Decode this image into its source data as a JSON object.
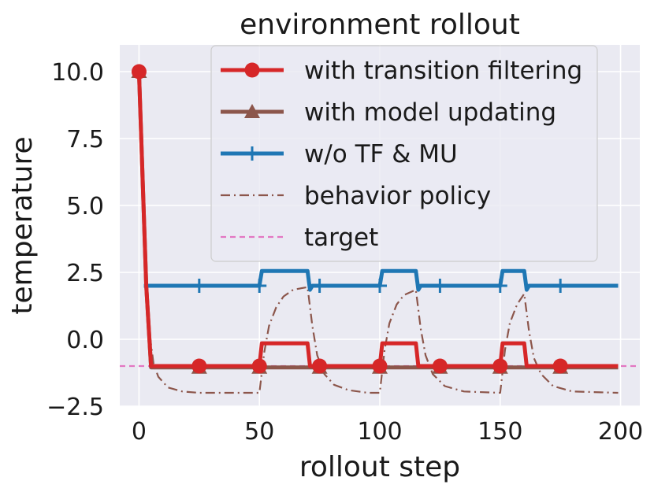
{
  "chart_data": {
    "type": "line",
    "title": "environment rollout",
    "xlabel": "rollout step",
    "ylabel": "temperature",
    "xlim": [
      -8,
      208
    ],
    "ylim": [
      -2.5,
      11.0
    ],
    "xticks": [
      0,
      50,
      100,
      150,
      200
    ],
    "xtick_labels": [
      "0",
      "50",
      "100",
      "150",
      "200"
    ],
    "yticks": [
      -2.5,
      0.0,
      2.5,
      5.0,
      7.5,
      10.0
    ],
    "ytick_labels": [
      "−2.5",
      "0.0",
      "2.5",
      "5.0",
      "7.5",
      "10.0"
    ],
    "grid": true,
    "legend_position": "upper-right",
    "background": "#eaeaf2",
    "series": [
      {
        "name": "with transition filtering",
        "color": "#d62728",
        "marker": "circle",
        "style": "solid",
        "markers_at": [
          0,
          25,
          50,
          75,
          100,
          125,
          150,
          175
        ],
        "points": [
          [
            0,
            10
          ],
          [
            3,
            2
          ],
          [
            5,
            -1
          ],
          [
            50,
            -1
          ],
          [
            51,
            -0.15
          ],
          [
            70,
            -0.15
          ],
          [
            71,
            -1
          ],
          [
            100,
            -1
          ],
          [
            101,
            -0.15
          ],
          [
            115,
            -0.15
          ],
          [
            116,
            -1
          ],
          [
            150,
            -1
          ],
          [
            151,
            -0.15
          ],
          [
            160,
            -0.15
          ],
          [
            161,
            -1
          ],
          [
            199,
            -1
          ]
        ]
      },
      {
        "name": "with model updating",
        "color": "#8c564b",
        "marker": "triangle",
        "style": "solid",
        "markers_at": [
          0,
          25,
          50,
          75,
          100,
          125,
          150,
          175
        ],
        "points": [
          [
            0,
            10
          ],
          [
            3,
            2
          ],
          [
            5,
            -1.05
          ],
          [
            199,
            -1.05
          ]
        ]
      },
      {
        "name": "w/o TF & MU",
        "color": "#1f77b4",
        "marker": "plus",
        "style": "solid",
        "markers_at": [
          25,
          50,
          75,
          100,
          125,
          150,
          175
        ],
        "points": [
          [
            2,
            2
          ],
          [
            4,
            2
          ],
          [
            50,
            2
          ],
          [
            51,
            2.55
          ],
          [
            70,
            2.55
          ],
          [
            71,
            1.85
          ],
          [
            72,
            2
          ],
          [
            100,
            2
          ],
          [
            101,
            2.55
          ],
          [
            115,
            2.55
          ],
          [
            116,
            1.85
          ],
          [
            117,
            2
          ],
          [
            150,
            2
          ],
          [
            151,
            2.55
          ],
          [
            160,
            2.55
          ],
          [
            161,
            1.85
          ],
          [
            162,
            2
          ],
          [
            199,
            2
          ]
        ]
      },
      {
        "name": "behavior policy",
        "color": "#8c564b",
        "marker": "none",
        "style": "dashdot",
        "points": [
          [
            0,
            10
          ],
          [
            2,
            4
          ],
          [
            4,
            0.5
          ],
          [
            6,
            -0.9
          ],
          [
            8,
            -1.4
          ],
          [
            12,
            -1.8
          ],
          [
            18,
            -1.95
          ],
          [
            25,
            -2
          ],
          [
            50,
            -2
          ],
          [
            52,
            -0.5
          ],
          [
            54,
            0.5
          ],
          [
            57,
            1.2
          ],
          [
            60,
            1.6
          ],
          [
            64,
            1.85
          ],
          [
            70,
            1.95
          ],
          [
            72,
            0.5
          ],
          [
            74,
            -0.6
          ],
          [
            77,
            -1.3
          ],
          [
            81,
            -1.7
          ],
          [
            87,
            -1.9
          ],
          [
            95,
            -2
          ],
          [
            100,
            -2
          ],
          [
            102,
            -0.4
          ],
          [
            104,
            0.6
          ],
          [
            107,
            1.3
          ],
          [
            110,
            1.65
          ],
          [
            115,
            1.85
          ],
          [
            117,
            0.4
          ],
          [
            119,
            -0.6
          ],
          [
            122,
            -1.3
          ],
          [
            127,
            -1.75
          ],
          [
            135,
            -1.95
          ],
          [
            150,
            -2
          ],
          [
            152,
            -0.4
          ],
          [
            154,
            0.6
          ],
          [
            157,
            1.3
          ],
          [
            160,
            1.7
          ],
          [
            162,
            0.3
          ],
          [
            164,
            -0.7
          ],
          [
            167,
            -1.3
          ],
          [
            172,
            -1.75
          ],
          [
            180,
            -1.95
          ],
          [
            199,
            -2
          ]
        ]
      },
      {
        "name": "target",
        "color": "#e377c2",
        "marker": "none",
        "style": "dashed",
        "y_constant": -1.0
      }
    ]
  }
}
